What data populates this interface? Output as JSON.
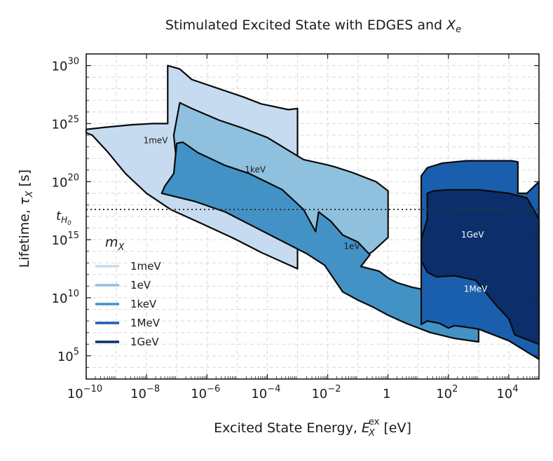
{
  "chart_data": {
    "type": "area",
    "title": "Stimulated Excited State with EDGES and ",
    "title_sym": "X",
    "title_sub": "e",
    "xlabel": "Excited State Energy, ",
    "xlabel_sym": "E",
    "xlabel_sub": "X",
    "xlabel_sup": "ex",
    "xlabel_unit": " [eV]",
    "ylabel": "Lifetime,  ",
    "ylabel_sym": "τ",
    "ylabel_sub": "X",
    "ylabel_unit": "   [s]",
    "xscale": "log",
    "yscale": "log",
    "xlim_log10": [
      -10,
      5
    ],
    "ylim_log10": [
      3,
      31
    ],
    "x_ticks": [
      {
        "base": "10",
        "exp": "−10",
        "log": -10
      },
      {
        "base": "10",
        "exp": "−8",
        "log": -8
      },
      {
        "base": "10",
        "exp": "−6",
        "log": -6
      },
      {
        "base": "10",
        "exp": "−4",
        "log": -4
      },
      {
        "base": "10",
        "exp": "−2",
        "log": -2
      },
      {
        "base": "1",
        "exp": "",
        "log": 0
      },
      {
        "base": "10",
        "exp": "2",
        "log": 2
      },
      {
        "base": "10",
        "exp": "4",
        "log": 4
      }
    ],
    "y_ticks": [
      {
        "base": "10",
        "exp": "5",
        "log": 5
      },
      {
        "base": "10",
        "exp": "10",
        "log": 10
      },
      {
        "base": "10",
        "exp": "15",
        "log": 15
      },
      {
        "base": "10",
        "exp": "20",
        "log": 20
      },
      {
        "base": "10",
        "exp": "25",
        "log": 25
      },
      {
        "base": "10",
        "exp": "30",
        "log": 30
      }
    ],
    "hubble_line": {
      "log10_tau": 17.6,
      "label": "t",
      "label_sub": "H",
      "label_subsub": "0"
    },
    "grid": true,
    "legend": {
      "title": "m",
      "title_sub": "X",
      "position": "center-left",
      "entries": [
        {
          "label": "1meV",
          "color": "#c6dbef"
        },
        {
          "label": "1eV",
          "color": "#8fc1de"
        },
        {
          "label": "1keV",
          "color": "#4292c6"
        },
        {
          "label": "1MeV",
          "color": "#1a5fad"
        },
        {
          "label": "1GeV",
          "color": "#0c2f6b"
        }
      ]
    },
    "series": [
      {
        "name": "1meV",
        "color": "#c6dbef",
        "label_color": "#1a1a1a",
        "label_at": [
          -7.7,
          23.3
        ],
        "boundary_log10": [
          [
            -10,
            24.5
          ],
          [
            -9.3,
            24.7
          ],
          [
            -8.5,
            24.9
          ],
          [
            -7.8,
            25.0
          ],
          [
            -7.3,
            25.0
          ],
          [
            -7.3,
            30
          ],
          [
            -6.9,
            29.7
          ],
          [
            -6.5,
            28.8
          ],
          [
            -5.6,
            28.0
          ],
          [
            -4.8,
            27.3
          ],
          [
            -4.2,
            26.7
          ],
          [
            -3.3,
            26.2
          ],
          [
            -3.0,
            26.3
          ],
          [
            -3.0,
            12.5
          ],
          [
            -3.6,
            13.2
          ],
          [
            -4.2,
            13.9
          ],
          [
            -5.1,
            15.1
          ],
          [
            -6.1,
            16.3
          ],
          [
            -7.2,
            17.6
          ],
          [
            -8.0,
            19.0
          ],
          [
            -8.7,
            20.7
          ],
          [
            -9.3,
            22.6
          ],
          [
            -9.8,
            24.0
          ],
          [
            -10,
            24.2
          ]
        ]
      },
      {
        "name": "1eV",
        "color": "#8fc1de",
        "label_color": "#1a1a1a",
        "label_at": [
          -1.2,
          14.2
        ],
        "boundary_log10": [
          [
            -7.0,
            21.5
          ],
          [
            -7.1,
            24.0
          ],
          [
            -6.9,
            26.8
          ],
          [
            -6.5,
            26.3
          ],
          [
            -5.6,
            25.3
          ],
          [
            -4.8,
            24.6
          ],
          [
            -4.0,
            23.8
          ],
          [
            -2.8,
            21.9
          ],
          [
            -2.1,
            21.5
          ],
          [
            -1.8,
            21.3
          ],
          [
            -1.2,
            20.8
          ],
          [
            -0.4,
            20.0
          ],
          [
            0,
            19.2
          ],
          [
            0,
            15.2
          ],
          [
            -0.5,
            14.0
          ],
          [
            -0.8,
            13.5
          ],
          [
            -1.0,
            12.8
          ],
          [
            -1.4,
            12.4
          ],
          [
            -2.2,
            13.4
          ],
          [
            -3.0,
            14.8
          ],
          [
            -3.6,
            16.1
          ],
          [
            -4.6,
            17.3
          ],
          [
            -5.8,
            18.6
          ],
          [
            -6.8,
            19.6
          ],
          [
            -7.0,
            20.5
          ]
        ]
      },
      {
        "name": "1keV",
        "color": "#4292c6",
        "label_color": "#1a1a1a",
        "label_at": [
          -4.4,
          20.8
        ],
        "boundary_log10": [
          [
            -7.1,
            20.7
          ],
          [
            -7.0,
            23.3
          ],
          [
            -6.8,
            23.4
          ],
          [
            -6.3,
            22.5
          ],
          [
            -5.4,
            21.4
          ],
          [
            -4.6,
            20.7
          ],
          [
            -3.5,
            19.3
          ],
          [
            -2.8,
            17.6
          ],
          [
            -2.4,
            15.7
          ],
          [
            -2.3,
            17.4
          ],
          [
            -1.9,
            16.6
          ],
          [
            -1.5,
            15.4
          ],
          [
            -1.0,
            14.8
          ],
          [
            -0.6,
            13.7
          ],
          [
            -0.9,
            12.7
          ],
          [
            -0.3,
            12.3
          ],
          [
            0,
            11.7
          ],
          [
            0.3,
            11.3
          ],
          [
            0.8,
            10.9
          ],
          [
            1.4,
            10.6
          ],
          [
            2.0,
            10.6
          ],
          [
            2.5,
            10.4
          ],
          [
            3.0,
            10.3
          ],
          [
            3.0,
            6.2
          ],
          [
            2.2,
            6.5
          ],
          [
            1.4,
            7.0
          ],
          [
            0.6,
            7.8
          ],
          [
            0,
            8.5
          ],
          [
            -0.5,
            9.2
          ],
          [
            -1.0,
            9.8
          ],
          [
            -1.5,
            10.5
          ],
          [
            -2.1,
            12.8
          ],
          [
            -2.7,
            13.8
          ],
          [
            -3.6,
            15.0
          ],
          [
            -4.5,
            16.2
          ],
          [
            -5.4,
            17.4
          ],
          [
            -6.4,
            18.3
          ],
          [
            -7.5,
            19.0
          ],
          [
            -7.4,
            19.6
          ]
        ]
      },
      {
        "name": "1MeV",
        "color": "#1a5fad",
        "label_color": "#ffffff",
        "label_at": [
          2.9,
          10.5
        ],
        "boundary_log10": [
          [
            1.1,
            20.5
          ],
          [
            1.3,
            21.2
          ],
          [
            1.8,
            21.6
          ],
          [
            2.6,
            21.8
          ],
          [
            3.4,
            21.8
          ],
          [
            4.1,
            21.8
          ],
          [
            4.3,
            21.7
          ],
          [
            4.3,
            19.0
          ],
          [
            4.6,
            19.0
          ],
          [
            5,
            20.0
          ],
          [
            5,
            4.7
          ],
          [
            4.0,
            6.3
          ],
          [
            3.0,
            7.3
          ],
          [
            2.5,
            7.5
          ],
          [
            2.2,
            7.6
          ],
          [
            2.0,
            7.4
          ],
          [
            1.7,
            7.8
          ],
          [
            1.3,
            8.0
          ],
          [
            1.1,
            7.7
          ]
        ]
      },
      {
        "name": "1GeV",
        "color": "#0c2f6b",
        "label_color": "#ffffff",
        "label_at": [
          2.8,
          15.2
        ],
        "boundary_log10": [
          [
            1.3,
            19.0
          ],
          [
            1.5,
            19.2
          ],
          [
            2.0,
            19.3
          ],
          [
            3.0,
            19.3
          ],
          [
            4.0,
            19.0
          ],
          [
            4.6,
            18.6
          ],
          [
            5,
            16.8
          ],
          [
            5,
            6.0
          ],
          [
            4.2,
            6.8
          ],
          [
            4.0,
            8.2
          ],
          [
            3.6,
            9.3
          ],
          [
            2.9,
            11.5
          ],
          [
            2.2,
            11.9
          ],
          [
            1.6,
            11.8
          ],
          [
            1.3,
            12.2
          ],
          [
            1.1,
            13.2
          ],
          [
            1.1,
            15.0
          ],
          [
            1.3,
            16.8
          ]
        ]
      }
    ]
  }
}
